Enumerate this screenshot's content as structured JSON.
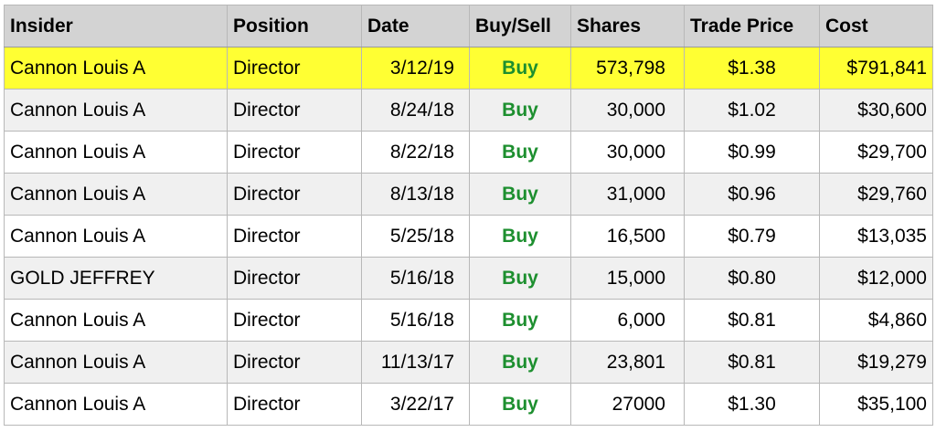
{
  "table": {
    "headers": [
      "Insider",
      "Position",
      "Date",
      "Buy/Sell",
      "Shares",
      "Trade Price",
      "Cost"
    ],
    "highlight_color": "#ffff33",
    "buy_color": "#1d8f2f",
    "rows": [
      {
        "insider": "Cannon Louis A",
        "position": "Director",
        "date": "3/12/19",
        "action": "Buy",
        "shares": "573,798",
        "price": "$1.38",
        "cost": "$791,841",
        "highlighted": true
      },
      {
        "insider": "Cannon Louis A",
        "position": "Director",
        "date": "8/24/18",
        "action": "Buy",
        "shares": "30,000",
        "price": "$1.02",
        "cost": "$30,600"
      },
      {
        "insider": "Cannon Louis A",
        "position": "Director",
        "date": "8/22/18",
        "action": "Buy",
        "shares": "30,000",
        "price": "$0.99",
        "cost": "$29,700"
      },
      {
        "insider": "Cannon Louis A",
        "position": "Director",
        "date": "8/13/18",
        "action": "Buy",
        "shares": "31,000",
        "price": "$0.96",
        "cost": "$29,760"
      },
      {
        "insider": "Cannon Louis A",
        "position": "Director",
        "date": "5/25/18",
        "action": "Buy",
        "shares": "16,500",
        "price": "$0.79",
        "cost": "$13,035"
      },
      {
        "insider": "GOLD JEFFREY",
        "position": "Director",
        "date": "5/16/18",
        "action": "Buy",
        "shares": "15,000",
        "price": "$0.80",
        "cost": "$12,000"
      },
      {
        "insider": "Cannon Louis A",
        "position": "Director",
        "date": "5/16/18",
        "action": "Buy",
        "shares": "6,000",
        "price": "$0.81",
        "cost": "$4,860"
      },
      {
        "insider": "Cannon Louis A",
        "position": "Director",
        "date": "11/13/17",
        "action": "Buy",
        "shares": "23,801",
        "price": "$0.81",
        "cost": "$19,279"
      },
      {
        "insider": "Cannon Louis A",
        "position": "Director",
        "date": "3/22/17",
        "action": "Buy",
        "shares": "27000",
        "price": "$1.30",
        "cost": "$35,100"
      }
    ]
  }
}
